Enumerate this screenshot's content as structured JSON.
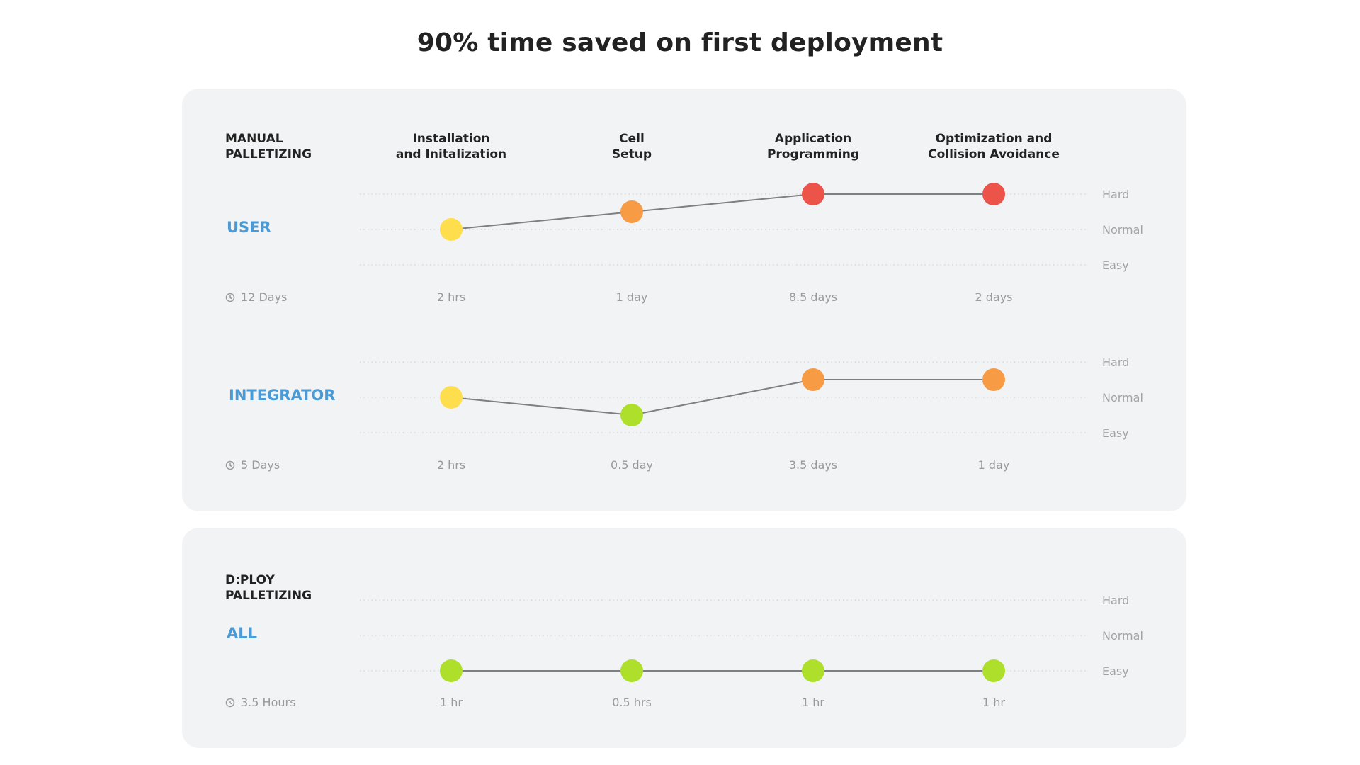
{
  "title": "90% time saved on first deployment",
  "chart_data": {
    "type": "line",
    "categories": [
      "Installation\nand Initalization",
      "Cell\nSetup",
      "Application\nProgramming",
      "Optimization and\nCollision Avoidance"
    ],
    "levels": [
      "Easy",
      "Normal",
      "Hard"
    ],
    "colors": {
      "Easy": "#aedf2a",
      "Normal_low": "#ffde4d",
      "Normal": "#f79b45",
      "Hard": "#ec5349"
    },
    "panels": [
      {
        "label": "MANUAL\nPALLETIZING",
        "series": [
          {
            "name": "USER",
            "values": [
              1.0,
              1.5,
              2.0,
              2.0
            ],
            "point_colors": [
              "#ffde4d",
              "#f79b45",
              "#ec5349",
              "#ec5349"
            ],
            "total": "12 Days",
            "times": [
              "2 hrs",
              "1 day",
              "8.5 days",
              "2 days"
            ]
          },
          {
            "name": "INTEGRATOR",
            "values": [
              1.0,
              0.5,
              1.5,
              1.5
            ],
            "point_colors": [
              "#ffde4d",
              "#aedf2a",
              "#f79b45",
              "#f79b45"
            ],
            "total": "5 Days",
            "times": [
              "2 hrs",
              "0.5 day",
              "3.5 days",
              "1 day"
            ]
          }
        ]
      },
      {
        "label": "D:PLOY\nPALLETIZING",
        "series": [
          {
            "name": "ALL",
            "values": [
              0,
              0,
              0,
              0
            ],
            "point_colors": [
              "#aedf2a",
              "#aedf2a",
              "#aedf2a",
              "#aedf2a"
            ],
            "total": "3.5 Hours",
            "times": [
              "1 hr",
              "0.5 hrs",
              "1 hr",
              "1 hr"
            ]
          }
        ]
      }
    ]
  }
}
